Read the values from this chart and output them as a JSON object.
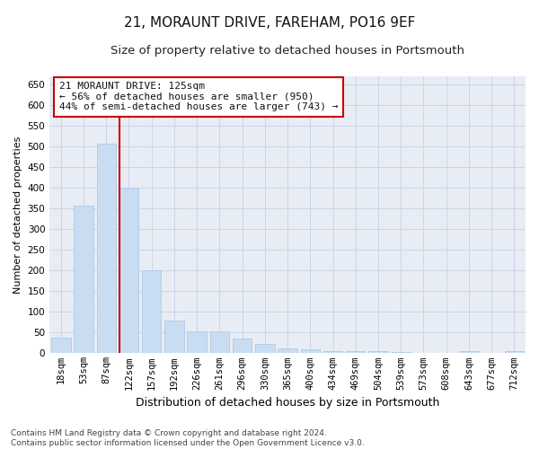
{
  "title": "21, MORAUNT DRIVE, FAREHAM, PO16 9EF",
  "subtitle": "Size of property relative to detached houses in Portsmouth",
  "xlabel": "Distribution of detached houses by size in Portsmouth",
  "ylabel": "Number of detached properties",
  "categories": [
    "18sqm",
    "53sqm",
    "87sqm",
    "122sqm",
    "157sqm",
    "192sqm",
    "226sqm",
    "261sqm",
    "296sqm",
    "330sqm",
    "365sqm",
    "400sqm",
    "434sqm",
    "469sqm",
    "504sqm",
    "539sqm",
    "573sqm",
    "608sqm",
    "643sqm",
    "677sqm",
    "712sqm"
  ],
  "values": [
    38,
    357,
    507,
    401,
    200,
    80,
    53,
    53,
    35,
    22,
    11,
    9,
    5,
    5,
    5,
    3,
    1,
    1,
    5,
    1,
    5
  ],
  "bar_color": "#c9ddf2",
  "bar_edge_color": "#b0c8e8",
  "vline_x": 3,
  "vline_color": "#cc0000",
  "annotation_line1": "21 MORAUNT DRIVE: 125sqm",
  "annotation_line2": "← 56% of detached houses are smaller (950)",
  "annotation_line3": "44% of semi-detached houses are larger (743) →",
  "annotation_box_color": "#ffffff",
  "annotation_box_edge": "#cc0000",
  "grid_color": "#ccd5e5",
  "background_color": "#e8edf5",
  "ylim": [
    0,
    670
  ],
  "yticks": [
    0,
    50,
    100,
    150,
    200,
    250,
    300,
    350,
    400,
    450,
    500,
    550,
    600,
    650
  ],
  "footnote_line1": "Contains HM Land Registry data © Crown copyright and database right 2024.",
  "footnote_line2": "Contains public sector information licensed under the Open Government Licence v3.0.",
  "title_fontsize": 11,
  "subtitle_fontsize": 9.5,
  "xlabel_fontsize": 9,
  "ylabel_fontsize": 8,
  "tick_fontsize": 7.5,
  "annotation_fontsize": 8,
  "footnote_fontsize": 6.5
}
